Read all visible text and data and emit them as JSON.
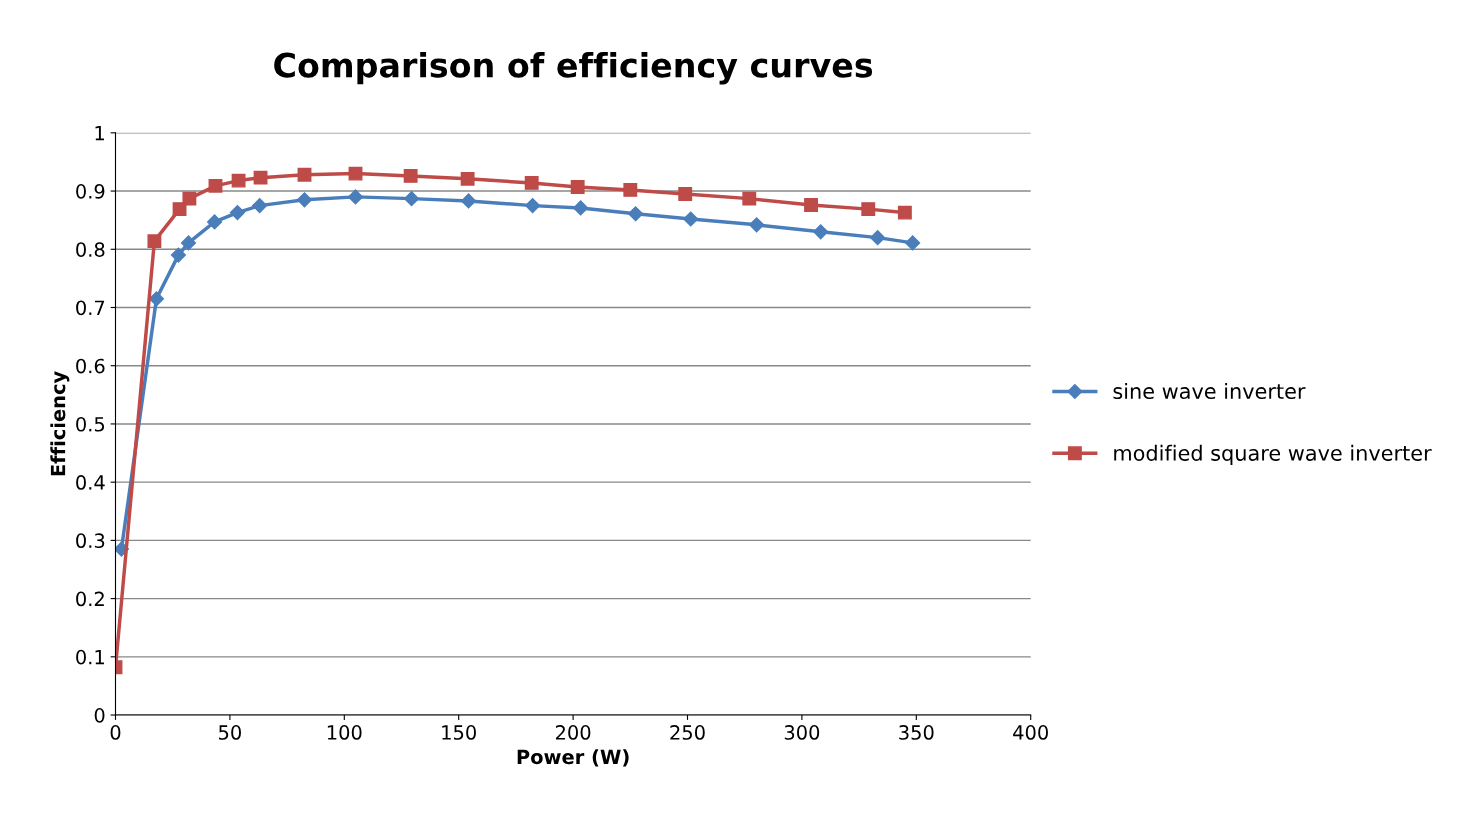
{
  "chart_data": {
    "type": "line",
    "title": "Comparison of efficiency curves",
    "xlabel": "Power (W)",
    "ylabel": "Efficiency",
    "xlim": [
      0,
      400
    ],
    "xticks": [
      0,
      50,
      100,
      150,
      200,
      250,
      300,
      350,
      400
    ],
    "ylim": [
      0,
      1
    ],
    "yticks": [
      0,
      0.1,
      0.2,
      0.3,
      0.4,
      0.5,
      0.6,
      0.7,
      0.8,
      0.9,
      1
    ],
    "grid": "y",
    "legend": "right",
    "series": [
      {
        "name": "sine wave inverter",
        "color": "#4a7ebb",
        "marker": "diamond",
        "x": [
          2.6,
          17.9,
          27.5,
          31.9,
          43.3,
          53.3,
          63,
          82.6,
          104.9,
          129.4,
          154.3,
          182.3,
          203.3,
          227.3,
          251.4,
          280.2,
          308.2,
          333.1,
          348.4
        ],
        "values": [
          0.285,
          0.715,
          0.79,
          0.811,
          0.847,
          0.863,
          0.875,
          0.885,
          0.89,
          0.887,
          0.883,
          0.875,
          0.871,
          0.861,
          0.852,
          0.842,
          0.83,
          0.82,
          0.811
        ]
      },
      {
        "name": "modified square wave inverter",
        "color": "#be4b48",
        "marker": "square",
        "x": [
          0,
          17,
          28,
          32.3,
          43.7,
          53.8,
          63.4,
          82.6,
          104.9,
          129,
          153.9,
          181.9,
          202,
          225,
          249,
          277,
          304,
          329,
          345
        ],
        "values": [
          0.082,
          0.814,
          0.869,
          0.887,
          0.909,
          0.918,
          0.923,
          0.928,
          0.93,
          0.926,
          0.921,
          0.914,
          0.907,
          0.902,
          0.895,
          0.887,
          0.876,
          0.869,
          0.863
        ]
      }
    ]
  }
}
